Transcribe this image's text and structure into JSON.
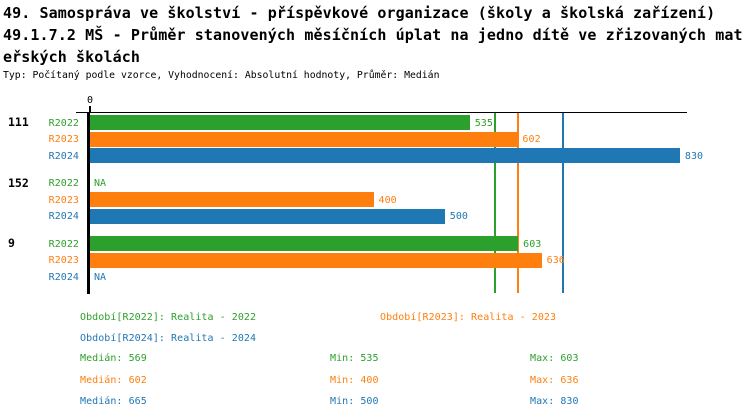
{
  "header": {
    "title_line1": "49. Samospráva ve školství - příspěvkové organizace (školy a školská zařízení)",
    "title_line2": "49.1.7.2 MŠ - Průměr stanovených měsíčních úplat na jedno dítě ve zřizovaných mat",
    "title_line3": "eřských školách",
    "meta_line": "Typ: Počítaný podle vzorce, Vyhodnocení: Absolutní hodnoty, Průměr: Medián"
  },
  "colors": {
    "r2022": "#2ca02c",
    "r2023": "#ff7f0e",
    "r2024": "#1f77b4",
    "axis": "#000000"
  },
  "chart_data": {
    "type": "bar",
    "orientation": "horizontal",
    "title": "49.1.7.2 MŠ - Průměr stanovených měsíčních úplat na jedno dítě ve zřizovaných mateřských školách",
    "x_tick_labels": [
      "0"
    ],
    "xlim": [
      0,
      830
    ],
    "grid": false,
    "na_label": "NA",
    "groups": [
      "111",
      "152",
      "9"
    ],
    "series": [
      {
        "name": "R2022",
        "color": "#2ca02c",
        "values": [
          535,
          null,
          603
        ]
      },
      {
        "name": "R2023",
        "color": "#ff7f0e",
        "values": [
          602,
          400,
          636
        ]
      },
      {
        "name": "R2024",
        "color": "#1f77b4",
        "values": [
          830,
          500,
          null
        ]
      }
    ],
    "median_lines": [
      {
        "series": "R2022",
        "value": 569,
        "color": "#2ca02c"
      },
      {
        "series": "R2023",
        "value": 602,
        "color": "#ff7f0e"
      },
      {
        "series": "R2024",
        "value": 665,
        "color": "#1f77b4"
      }
    ]
  },
  "legend": {
    "items": [
      {
        "label": "Období[R2022]: Realita - 2022",
        "color": "#2ca02c"
      },
      {
        "label": "Období[R2023]: Realita - 2023",
        "color": "#ff7f0e"
      },
      {
        "label": "Období[R2024]: Realita - 2024",
        "color": "#1f77b4"
      }
    ]
  },
  "stats": {
    "rows": [
      {
        "median": "Medián: 569",
        "min": "Min: 535",
        "max": "Max: 603",
        "color": "#2ca02c"
      },
      {
        "median": "Medián: 602",
        "min": "Min: 400",
        "max": "Max: 636",
        "color": "#ff7f0e"
      },
      {
        "median": "Medián: 665",
        "min": "Min: 500",
        "max": "Max: 830",
        "color": "#1f77b4"
      }
    ]
  }
}
